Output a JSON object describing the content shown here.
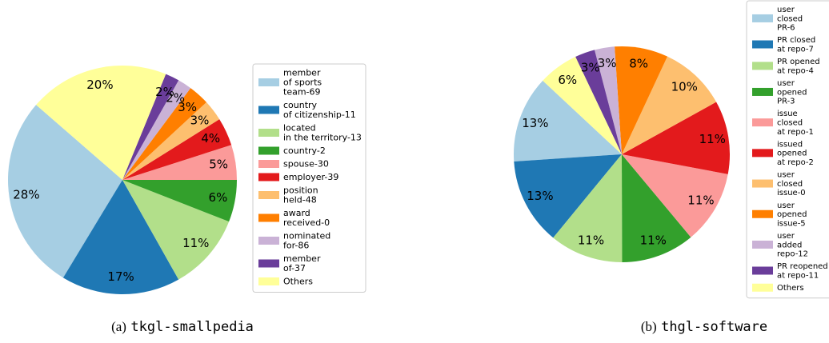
{
  "chart_data": [
    {
      "type": "pie",
      "caption": {
        "label": "(a)",
        "name": "tkgl-smallpedia"
      },
      "categories": [
        "member\nof sports\nteam-69",
        "country\nof citizenship-11",
        "located\nin the territory-13",
        "country-2",
        "spouse-30",
        "employer-39",
        "position\nheld-48",
        "award\nreceived-0",
        "nominated\nfor-86",
        "member\nof-37",
        "Others"
      ],
      "values": [
        28,
        17,
        11,
        6,
        5,
        4,
        3,
        3,
        2,
        2,
        20
      ],
      "value_labels": [
        "28%",
        "17%",
        "11%",
        "6%",
        "5%",
        "4%",
        "3%",
        "3%",
        "2%",
        "2%",
        "20%"
      ],
      "colors": [
        "#a6cee3",
        "#1f78b4",
        "#b2df8a",
        "#33a02c",
        "#fb9a99",
        "#e31a1c",
        "#fdbf6f",
        "#ff7f00",
        "#cab2d6",
        "#6a3d9a",
        "#ffff99"
      ],
      "legend": "right"
    },
    {
      "type": "pie",
      "caption": {
        "label": "(b)",
        "name": "thgl-software"
      },
      "categories": [
        "user\nclosed\nPR-6",
        "PR closed\nat repo-7",
        "PR opened\nat repo-4",
        "user\nopened\nPR-3",
        "issue\nclosed\nat repo-1",
        "issued\nopened\nat repo-2",
        "user\nclosed\nissue-0",
        "user\nopened\nissue-5",
        "user\nadded\nrepo-12",
        "PR reopened\nat repo-11",
        "Others"
      ],
      "values": [
        13,
        13,
        11,
        11,
        11,
        11,
        10,
        8,
        3,
        3,
        6
      ],
      "value_labels": [
        "13%",
        "13%",
        "11%",
        "11%",
        "11%",
        "11%",
        "10%",
        "8%",
        "3%",
        "3%",
        "6%"
      ],
      "colors": [
        "#a6cee3",
        "#1f78b4",
        "#b2df8a",
        "#33a02c",
        "#fb9a99",
        "#e31a1c",
        "#fdbf6f",
        "#ff7f00",
        "#cab2d6",
        "#6a3d9a",
        "#ffff99"
      ],
      "legend": "right"
    }
  ]
}
